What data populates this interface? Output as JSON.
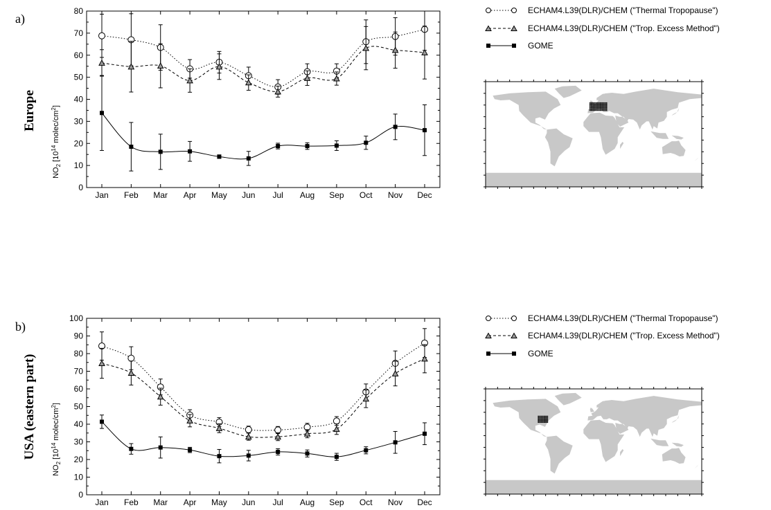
{
  "months": [
    "Jan",
    "Feb",
    "Mar",
    "Apr",
    "May",
    "Jun",
    "Jul",
    "Aug",
    "Sep",
    "Oct",
    "Nov",
    "Dec"
  ],
  "legend": {
    "thermal": "ECHAM4.L39(DLR)/CHEM (\"Thermal Tropopause\")",
    "excess": "ECHAM4.L39(DLR)/CHEM (\"Trop. Excess Method\")",
    "gome": "GOME"
  },
  "colors": {
    "line": "#000000",
    "triangle_fill": "#9a9a9a",
    "land": "#c8c8c8",
    "region_dots": "#000000"
  },
  "chart_data": [
    {
      "type": "line",
      "panel_label": "a)",
      "region_label": "Europe",
      "ylabel_base": "NO",
      "ylabel_sub": "2",
      "ylabel_mid": " [10",
      "ylabel_sup": "14",
      "ylabel_unit": " molec/cm",
      "ylabel_sup2": "2",
      "ylabel_end": "]",
      "ylim": [
        0,
        80
      ],
      "yticks": [
        0,
        10,
        20,
        30,
        40,
        50,
        60,
        70,
        80
      ],
      "categories": [
        "Jan",
        "Feb",
        "Mar",
        "Apr",
        "May",
        "Jun",
        "Jul",
        "Aug",
        "Sep",
        "Oct",
        "Nov",
        "Dec"
      ],
      "legend_placement": "right",
      "grid": false,
      "series": [
        {
          "name": "ECHAM4.L39(DLR)/CHEM (\"Thermal Tropopause\")",
          "marker": "circle",
          "dash": "dotted",
          "values": [
            68.8,
            67.0,
            63.5,
            53.8,
            56.8,
            50.7,
            45.6,
            52.5,
            52.8,
            66.1,
            68.5,
            71.7
          ],
          "errors": [
            9.8,
            11.8,
            10.3,
            4.2,
            4.9,
            3.9,
            3.3,
            3.6,
            3.3,
            9.9,
            8.5,
            9.5
          ]
        },
        {
          "name": "ECHAM4.L39(DLR)/CHEM (\"Trop. Excess Method\")",
          "marker": "triangle",
          "dash": "dashed",
          "values": [
            56.5,
            54.8,
            55.2,
            48.5,
            54.8,
            47.6,
            43.5,
            49.6,
            49.4,
            63.2,
            62.3,
            61.2
          ],
          "errors": [
            6.0,
            11.5,
            10.0,
            5.3,
            5.8,
            3.5,
            2.5,
            3.3,
            3.0,
            9.8,
            8.2,
            12.0
          ]
        },
        {
          "name": "GOME",
          "marker": "square",
          "dash": "solid",
          "values": [
            33.8,
            18.5,
            16.2,
            16.4,
            14.0,
            13.2,
            18.8,
            18.8,
            19.0,
            20.3,
            27.5,
            26.0
          ],
          "errors": [
            17.0,
            11.0,
            8.0,
            4.5,
            0.8,
            3.2,
            1.3,
            1.5,
            2.2,
            3.0,
            5.8,
            11.5
          ]
        }
      ]
    },
    {
      "type": "line",
      "panel_label": "b)",
      "region_label": "USA (eastern part)",
      "ylabel_base": "NO",
      "ylabel_sub": "2",
      "ylabel_mid": " [10",
      "ylabel_sup": "14",
      "ylabel_unit": " molec/cm",
      "ylabel_sup2": "2",
      "ylabel_end": "]",
      "ylim": [
        0,
        100
      ],
      "yticks": [
        0,
        10,
        20,
        30,
        40,
        50,
        60,
        70,
        80,
        90,
        100
      ],
      "categories": [
        "Jan",
        "Feb",
        "Mar",
        "Apr",
        "May",
        "Jun",
        "Jul",
        "Aug",
        "Sep",
        "Oct",
        "Nov",
        "Dec"
      ],
      "legend_placement": "right",
      "grid": false,
      "series": [
        {
          "name": "ECHAM4.L39(DLR)/CHEM (\"Thermal Tropopause\")",
          "marker": "circle",
          "dash": "dotted",
          "values": [
            84.3,
            77.4,
            61.1,
            45.2,
            41.2,
            36.9,
            36.7,
            38.3,
            41.8,
            58.3,
            74.5,
            86.0
          ],
          "errors": [
            8.0,
            6.5,
            4.5,
            3.0,
            2.5,
            2.0,
            2.0,
            2.2,
            2.5,
            4.5,
            7.0,
            8.2
          ]
        },
        {
          "name": "ECHAM4.L39(DLR)/CHEM (\"Trop. Excess Method\")",
          "marker": "triangle",
          "dash": "dashed",
          "values": [
            74.5,
            69.0,
            55.6,
            42.0,
            37.7,
            32.9,
            32.9,
            34.6,
            37.2,
            54.4,
            68.7,
            77.1
          ],
          "errors": [
            8.5,
            6.8,
            4.8,
            3.5,
            2.5,
            2.0,
            2.2,
            2.3,
            3.0,
            5.0,
            7.0,
            8.0
          ]
        },
        {
          "name": "GOME",
          "marker": "square",
          "dash": "solid",
          "values": [
            41.4,
            26.0,
            26.8,
            25.4,
            21.9,
            22.2,
            24.3,
            23.4,
            21.5,
            25.2,
            29.7,
            34.6
          ],
          "errors": [
            3.8,
            3.0,
            6.0,
            1.5,
            3.8,
            3.0,
            1.8,
            2.0,
            2.0,
            2.0,
            6.2,
            6.2
          ]
        }
      ]
    }
  ]
}
